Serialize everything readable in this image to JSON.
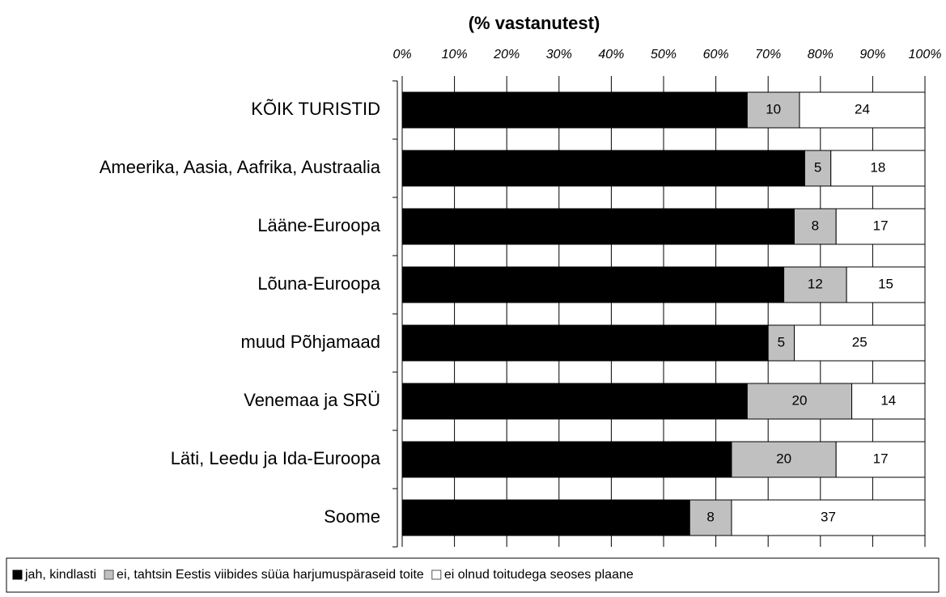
{
  "chart_data": {
    "type": "stacked-bar-horizontal",
    "subtitle": "(% vastanutest)",
    "categories": [
      "KÕIK TURISTID",
      "Ameerika, Aasia, Aafrika, Austraalia",
      "Lääne-Euroopa",
      "Lõuna-Euroopa",
      "muud Põhjamaad",
      "Venemaa ja SRÜ",
      "Läti, Leedu ja Ida-Euroopa",
      "Soome"
    ],
    "series": [
      {
        "name": "jah, kindlasti",
        "color": "#000000",
        "values": [
          66,
          77,
          75,
          73,
          70,
          66,
          63,
          55
        ]
      },
      {
        "name": "ei, tahtsin Eestis viibides süüa harjumuspäraseid toite",
        "color": "#c0c0c0",
        "values": [
          10,
          5,
          8,
          12,
          5,
          20,
          20,
          8
        ]
      },
      {
        "name": "ei olnud toitudega seoses plaane",
        "color": "#ffffff",
        "values": [
          24,
          18,
          17,
          15,
          25,
          14,
          17,
          37
        ]
      }
    ],
    "xlim": [
      0,
      100
    ],
    "xticks": [
      {
        "value": 0,
        "label": "0%"
      },
      {
        "value": 10,
        "label": "10%"
      },
      {
        "value": 20,
        "label": "20%"
      },
      {
        "value": 30,
        "label": "30%"
      },
      {
        "value": 40,
        "label": "40%"
      },
      {
        "value": 50,
        "label": "50%"
      },
      {
        "value": 60,
        "label": "60%"
      },
      {
        "value": 70,
        "label": "70%"
      },
      {
        "value": 80,
        "label": "80%"
      },
      {
        "value": 90,
        "label": "90%"
      },
      {
        "value": 100,
        "label": "100%"
      }
    ],
    "grid": true,
    "legend": "bottom"
  }
}
